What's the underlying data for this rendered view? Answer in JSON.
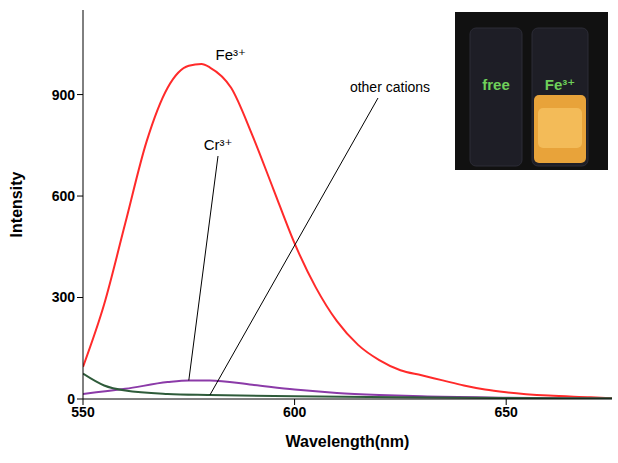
{
  "chart_data": {
    "type": "line",
    "xlabel": "Wavelength(nm)",
    "ylabel": "Intensity",
    "xlim": [
      550,
      675
    ],
    "ylim": [
      0,
      1150
    ],
    "xticks": [
      550,
      600,
      650
    ],
    "yticks": [
      0,
      300,
      600,
      900
    ],
    "grid": false,
    "series": [
      {
        "name": "Fe³⁺",
        "color": "#ff2a2a",
        "x": [
          550,
          555,
          560,
          565,
          570,
          575,
          578,
          580,
          585,
          590,
          595,
          600,
          605,
          610,
          615,
          620,
          625,
          630,
          635,
          640,
          645,
          650,
          660,
          670,
          675
        ],
        "values": [
          95,
          280,
          520,
          760,
          920,
          985,
          990,
          980,
          920,
          780,
          620,
          460,
          330,
          230,
          160,
          115,
          85,
          70,
          55,
          40,
          28,
          20,
          10,
          5,
          2
        ]
      },
      {
        "name": "Cr³⁺",
        "color": "#8b3aa8",
        "x": [
          550,
          560,
          570,
          575,
          580,
          590,
          600,
          610,
          620,
          630,
          650,
          675
        ],
        "values": [
          15,
          30,
          50,
          55,
          55,
          42,
          28,
          18,
          12,
          8,
          4,
          1
        ]
      },
      {
        "name": "other cations",
        "color": "#2e5b3a",
        "x": [
          550,
          555,
          560,
          570,
          580,
          600,
          625,
          650,
          675
        ],
        "values": [
          75,
          40,
          25,
          15,
          12,
          8,
          5,
          3,
          2
        ]
      }
    ],
    "inset": {
      "labels": [
        "free",
        "Fe³⁺"
      ]
    }
  }
}
